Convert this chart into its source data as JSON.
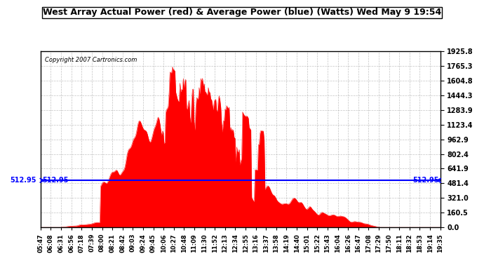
{
  "title": "West Array Actual Power (red) & Average Power (blue) (Watts) Wed May 9 19:54",
  "copyright": "Copyright 2007 Cartronics.com",
  "avg_power": 512.95,
  "ymax": 1925.8,
  "yticks": [
    0.0,
    160.5,
    321.0,
    481.4,
    641.9,
    802.4,
    962.9,
    1123.4,
    1283.9,
    1444.3,
    1604.8,
    1765.3,
    1925.8
  ],
  "bg_color": "#ffffff",
  "fill_color": "#ff0000",
  "avg_line_color": "#0000ff",
  "grid_color": "#aaaaaa",
  "title_bg": "#ffffff",
  "xtick_labels": [
    "05:47",
    "06:08",
    "06:31",
    "06:56",
    "07:18",
    "07:39",
    "08:00",
    "08:21",
    "08:42",
    "09:03",
    "09:24",
    "09:45",
    "10:06",
    "10:27",
    "10:48",
    "11:09",
    "11:30",
    "11:52",
    "12:13",
    "12:34",
    "12:55",
    "13:16",
    "13:37",
    "13:58",
    "14:19",
    "14:40",
    "15:01",
    "15:22",
    "15:43",
    "16:04",
    "16:26",
    "16:47",
    "17:08",
    "17:29",
    "17:50",
    "18:11",
    "18:32",
    "18:53",
    "19:14",
    "19:35"
  ],
  "num_points": 480
}
